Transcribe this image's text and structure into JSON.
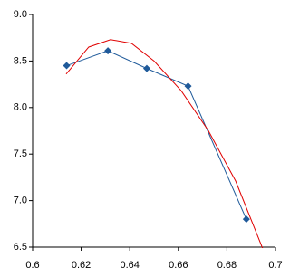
{
  "chart_data": {
    "type": "line",
    "series": [
      {
        "color": "#1f5a9a",
        "marker": "diamond",
        "x": [
          0.614,
          0.631,
          0.647,
          0.664,
          0.688
        ],
        "values": [
          8.45,
          8.61,
          8.42,
          8.23,
          6.8
        ]
      },
      {
        "color": "#e00000",
        "marker": "none",
        "x": [
          0.6138,
          0.6231,
          0.6321,
          0.6407,
          0.65,
          0.6612,
          0.6724,
          0.6836,
          0.6948
        ],
        "values": [
          8.36,
          8.65,
          8.73,
          8.69,
          8.5,
          8.18,
          7.75,
          7.21,
          6.48
        ]
      }
    ],
    "xlim": [
      0.6,
      0.7
    ],
    "xticks": [
      0.6,
      0.62,
      0.64,
      0.66,
      0.68,
      0.7
    ],
    "ylim": [
      6.5,
      9.0
    ],
    "yticks": [
      6.5,
      {
        "value": 7,
        "label": "7.0"
      },
      7.5,
      {
        "value": 8,
        "label": "8.0"
      },
      8.5,
      {
        "value": 9,
        "label": "9.0"
      }
    ],
    "grid": false
  }
}
